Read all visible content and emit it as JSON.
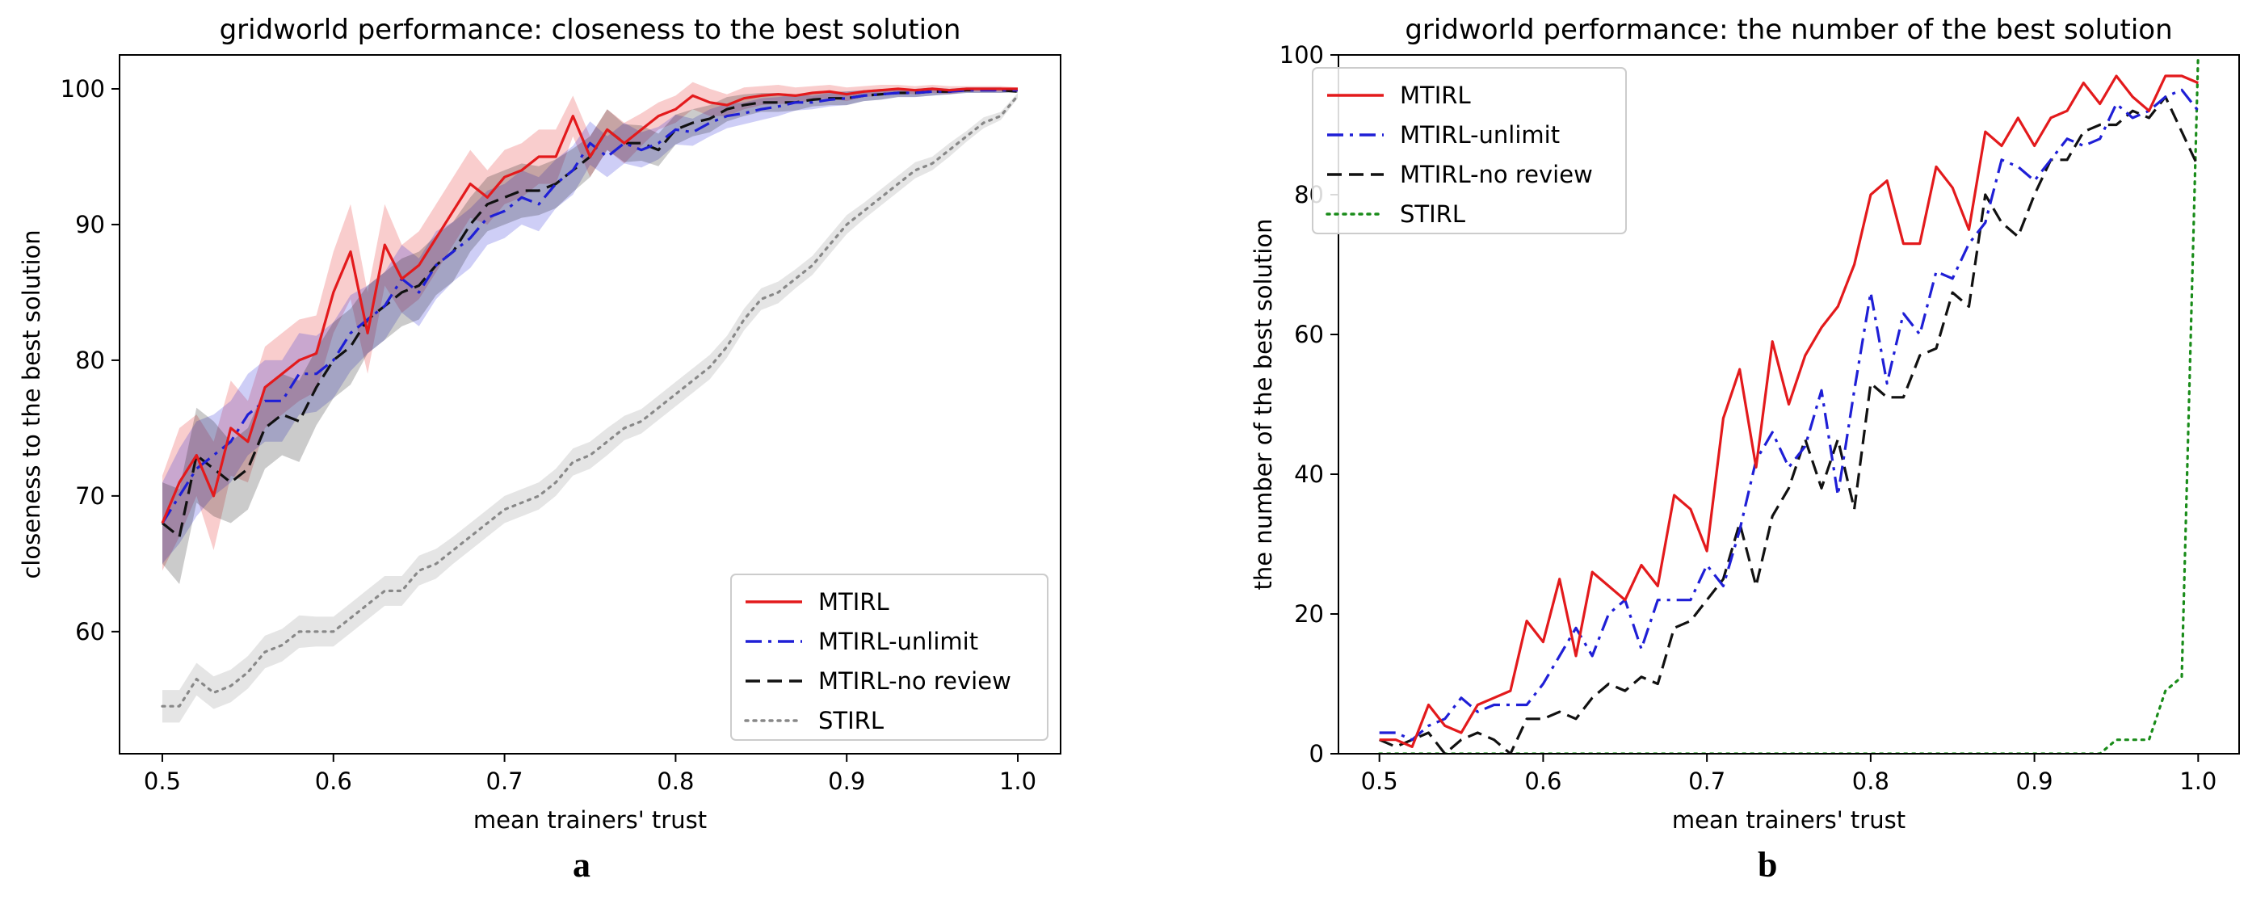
{
  "figure_labels": {
    "left": "a",
    "right": "b"
  },
  "colors": {
    "MTIRL": "#e31a1c",
    "MTIRL-unlimit": "#1f1fd6",
    "MTIRL-no review": "#111111",
    "STIRL": "#888888",
    "STIRL_b": "#1a8c1a"
  },
  "chart_data": [
    {
      "type": "line",
      "title": "gridworld performance: closeness to the best solution",
      "xlabel": "mean trainers' trust",
      "ylabel": "closeness to the best solution",
      "xlim": [
        0.475,
        1.025
      ],
      "ylim": [
        51,
        102.5
      ],
      "xticks": [
        0.5,
        0.6,
        0.7,
        0.8,
        0.9,
        1.0
      ],
      "xtick_labels": [
        "0.5",
        "0.6",
        "0.7",
        "0.8",
        "0.9",
        "1.0"
      ],
      "yticks": [
        60,
        70,
        80,
        90,
        100
      ],
      "ytick_labels": [
        "60",
        "70",
        "80",
        "90",
        "100"
      ],
      "grid": false,
      "legend_position": "lower-right",
      "x": [
        0.5,
        0.51,
        0.52,
        0.53,
        0.54,
        0.55,
        0.56,
        0.57,
        0.58,
        0.59,
        0.6,
        0.61,
        0.62,
        0.63,
        0.64,
        0.65,
        0.66,
        0.67,
        0.68,
        0.69,
        0.7,
        0.71,
        0.72,
        0.73,
        0.74,
        0.75,
        0.76,
        0.77,
        0.78,
        0.79,
        0.8,
        0.81,
        0.82,
        0.83,
        0.84,
        0.85,
        0.86,
        0.87,
        0.88,
        0.89,
        0.9,
        0.91,
        0.92,
        0.93,
        0.94,
        0.95,
        0.96,
        0.97,
        0.98,
        0.99,
        1.0
      ],
      "series": [
        {
          "name": "MTIRL",
          "style": "solid",
          "values": [
            68,
            71,
            73,
            70,
            75,
            74,
            78,
            79,
            80,
            80.5,
            85,
            88,
            82,
            88.5,
            86,
            87,
            89,
            91,
            93,
            92,
            93.5,
            94,
            95,
            95,
            98,
            95,
            97,
            96,
            97,
            98,
            98.5,
            99.5,
            99,
            98.8,
            99.3,
            99.5,
            99.6,
            99.5,
            99.7,
            99.8,
            99.6,
            99.8,
            99.9,
            100,
            99.9,
            100,
            99.9,
            100,
            100,
            100,
            100
          ],
          "band": [
            3.5,
            4,
            3,
            4,
            3.5,
            3,
            3,
            3,
            3,
            2.8,
            3,
            3.5,
            3,
            3,
            2.5,
            2.5,
            2.5,
            2.5,
            2.5,
            2,
            2,
            2,
            2,
            2,
            1.5,
            1.5,
            1.5,
            1.5,
            1.2,
            1,
            1,
            1,
            1,
            0.8,
            0.8,
            0.7,
            0.7,
            0.6,
            0.5,
            0.5,
            0.5,
            0.4,
            0.4,
            0.3,
            0.3,
            0.3,
            0.3,
            0.2,
            0.2,
            0.2,
            0.1
          ]
        },
        {
          "name": "MTIRL-unlimit",
          "style": "dashdot",
          "values": [
            68,
            70,
            72,
            73,
            74,
            76,
            77,
            77,
            79,
            79,
            80,
            82,
            83,
            84,
            86,
            85,
            87,
            88,
            89,
            90.5,
            91,
            92,
            91.5,
            93,
            94,
            96,
            95,
            96,
            95.5,
            96,
            97,
            96.8,
            97.5,
            98,
            98.2,
            98.5,
            98.7,
            99,
            99,
            99.2,
            99.3,
            99.5,
            99.6,
            99.7,
            99.7,
            99.8,
            99.8,
            99.9,
            99.9,
            99.9,
            99.9
          ],
          "band": [
            3,
            3.5,
            3.5,
            3,
            3,
            3,
            3,
            3,
            3,
            2.8,
            2.8,
            2.8,
            2.5,
            2.5,
            2.5,
            2.5,
            2.5,
            2.2,
            2.2,
            2,
            2,
            2,
            2,
            1.8,
            1.8,
            1.6,
            1.5,
            1.5,
            1.3,
            1.2,
            1.1,
            1,
            1,
            0.9,
            0.8,
            0.8,
            0.7,
            0.6,
            0.5,
            0.5,
            0.5,
            0.4,
            0.4,
            0.3,
            0.3,
            0.3,
            0.2,
            0.2,
            0.2,
            0.2,
            0.1
          ]
        },
        {
          "name": "MTIRL-no review",
          "style": "dashed",
          "values": [
            68,
            67,
            73,
            72,
            71,
            72,
            75,
            76,
            75.5,
            78,
            80,
            81,
            83,
            84,
            85,
            85.5,
            87,
            88,
            90,
            91.5,
            92,
            92.5,
            92.5,
            93,
            94,
            95,
            97,
            96,
            96,
            95.5,
            97,
            97.5,
            97.8,
            98.5,
            98.8,
            99,
            99,
            99,
            99.2,
            99.3,
            99.3,
            99.5,
            99.6,
            99.7,
            99.7,
            99.8,
            99.8,
            99.9,
            99.9,
            99.9,
            99.8
          ],
          "band": [
            3,
            3.5,
            3.5,
            3.5,
            3,
            3,
            3,
            3,
            3,
            2.8,
            2.8,
            2.8,
            2.5,
            2.5,
            2.5,
            2.5,
            2.2,
            2.2,
            2,
            2,
            2,
            2,
            1.8,
            1.8,
            1.6,
            1.5,
            1.5,
            1.4,
            1.3,
            1.2,
            1.1,
            1,
            1,
            0.9,
            0.8,
            0.7,
            0.7,
            0.6,
            0.5,
            0.5,
            0.5,
            0.4,
            0.4,
            0.3,
            0.3,
            0.3,
            0.2,
            0.2,
            0.2,
            0.2,
            0.1
          ]
        },
        {
          "name": "STIRL",
          "style": "dotted",
          "values": [
            54.5,
            54.5,
            56.5,
            55.5,
            56,
            57,
            58.5,
            59,
            60,
            60,
            60,
            61,
            62,
            63,
            63,
            64.5,
            65,
            66,
            67,
            68,
            69,
            69.5,
            70,
            71,
            72.5,
            73,
            74,
            75,
            75.5,
            76.5,
            77.5,
            78.5,
            79.5,
            81,
            83,
            84.5,
            85,
            86,
            87,
            88.5,
            90,
            91,
            92,
            93,
            94,
            94.5,
            95.5,
            96.5,
            97.5,
            98,
            99.5
          ],
          "band": [
            1.2,
            1.2,
            1.2,
            1.2,
            1.2,
            1.2,
            1.2,
            1.2,
            1.2,
            1.1,
            1.1,
            1.1,
            1.1,
            1.1,
            1.1,
            1.1,
            1.1,
            1,
            1,
            1,
            1,
            1,
            1,
            1,
            1,
            1,
            1,
            0.9,
            0.9,
            0.9,
            0.9,
            0.9,
            0.9,
            0.8,
            0.8,
            0.8,
            0.8,
            0.7,
            0.7,
            0.7,
            0.7,
            0.6,
            0.6,
            0.6,
            0.6,
            0.5,
            0.5,
            0.4,
            0.4,
            0.3,
            0.2
          ]
        }
      ]
    },
    {
      "type": "line",
      "title": "gridworld performance: the number of the best solution",
      "xlabel": "mean trainers' trust",
      "ylabel": "the number of the best solution",
      "xlim": [
        0.475,
        1.025
      ],
      "ylim": [
        0,
        100
      ],
      "xticks": [
        0.5,
        0.6,
        0.7,
        0.8,
        0.9,
        1.0
      ],
      "xtick_labels": [
        "0.5",
        "0.6",
        "0.7",
        "0.8",
        "0.9",
        "1.0"
      ],
      "yticks": [
        0,
        20,
        40,
        60,
        80,
        100
      ],
      "ytick_labels": [
        "0",
        "20",
        "40",
        "60",
        "80",
        "100"
      ],
      "grid": false,
      "legend_position": "upper-left",
      "x": [
        0.5,
        0.51,
        0.52,
        0.53,
        0.54,
        0.55,
        0.56,
        0.57,
        0.58,
        0.59,
        0.6,
        0.61,
        0.62,
        0.63,
        0.64,
        0.65,
        0.66,
        0.67,
        0.68,
        0.69,
        0.7,
        0.71,
        0.72,
        0.73,
        0.74,
        0.75,
        0.76,
        0.77,
        0.78,
        0.79,
        0.8,
        0.81,
        0.82,
        0.83,
        0.84,
        0.85,
        0.86,
        0.87,
        0.88,
        0.89,
        0.9,
        0.91,
        0.92,
        0.93,
        0.94,
        0.95,
        0.96,
        0.97,
        0.98,
        0.99,
        1.0
      ],
      "series": [
        {
          "name": "MTIRL",
          "style": "solid",
          "values": [
            2,
            2,
            1,
            7,
            4,
            3,
            7,
            8,
            9,
            19,
            16,
            25,
            14,
            26,
            24,
            22,
            27,
            24,
            37,
            35,
            29,
            48,
            55,
            41,
            59,
            50,
            57,
            61,
            64,
            70,
            80,
            82,
            73,
            73,
            84,
            81,
            75,
            89,
            87,
            91,
            87,
            91,
            92,
            96,
            93,
            97,
            94,
            92,
            97,
            97,
            96
          ]
        },
        {
          "name": "MTIRL-unlimit",
          "style": "dashdot",
          "values": [
            3,
            3,
            2,
            4,
            5,
            8,
            6,
            7,
            7,
            7,
            10,
            14,
            18,
            14,
            20,
            22,
            15,
            22,
            22,
            22,
            27,
            24,
            32,
            42,
            46,
            41,
            44,
            52,
            37,
            52,
            66,
            53,
            63,
            60,
            69,
            68,
            73,
            76,
            85,
            84,
            82,
            85,
            88,
            87,
            88,
            93,
            91,
            92,
            94,
            95,
            92
          ]
        },
        {
          "name": "MTIRL-no review",
          "style": "dashed",
          "values": [
            2,
            1,
            2,
            3,
            0,
            2,
            3,
            2,
            0,
            5,
            5,
            6,
            5,
            8,
            10,
            9,
            11,
            10,
            18,
            19,
            22,
            25,
            33,
            24,
            34,
            38,
            45,
            38,
            45,
            35,
            53,
            51,
            51,
            57,
            58,
            66,
            64,
            80,
            76,
            74,
            80,
            85,
            85,
            89,
            90,
            90,
            92,
            91,
            94,
            89,
            84
          ]
        },
        {
          "name": "STIRL",
          "style": "dotted",
          "values": [
            0,
            0,
            0,
            0,
            0,
            0,
            0,
            0,
            0,
            0,
            0,
            0,
            0,
            0,
            0,
            0,
            0,
            0,
            0,
            0,
            0,
            0,
            0,
            0,
            0,
            0,
            0,
            0,
            0,
            0,
            0,
            0,
            0,
            0,
            0,
            0,
            0,
            0,
            0,
            0,
            0,
            0,
            0,
            0,
            0,
            2,
            2,
            2,
            9,
            11,
            100
          ]
        }
      ]
    }
  ]
}
